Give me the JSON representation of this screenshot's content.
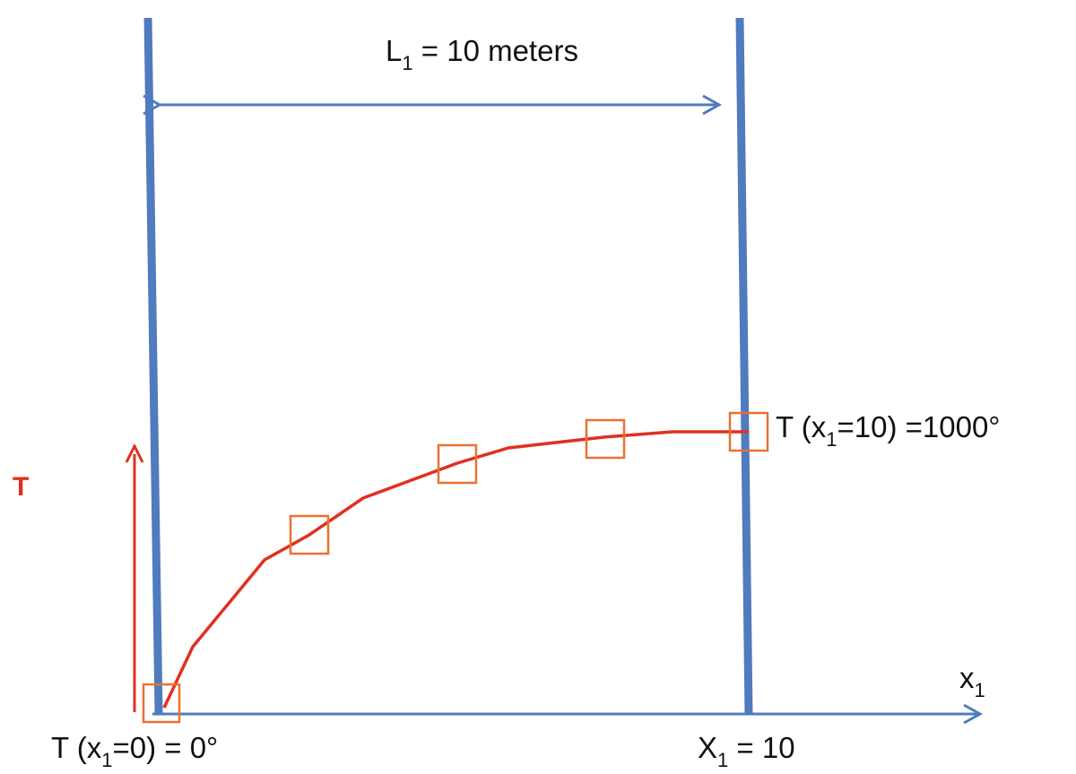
{
  "labels": {
    "length": {
      "main": "L",
      "sub": "1",
      "rest": " = 10 meters"
    },
    "end_temp": {
      "main": "T (x",
      "sub": "1",
      "rest": "=10) =1000°"
    },
    "start_temp": {
      "main": "T (x",
      "sub": "1",
      "rest": "=0) = 0°"
    },
    "end_pos": {
      "main": "X",
      "sub": "1",
      "rest": " = 10"
    },
    "x_axis": {
      "main": "x",
      "sub": "1"
    },
    "t_axis": "T"
  }
}
